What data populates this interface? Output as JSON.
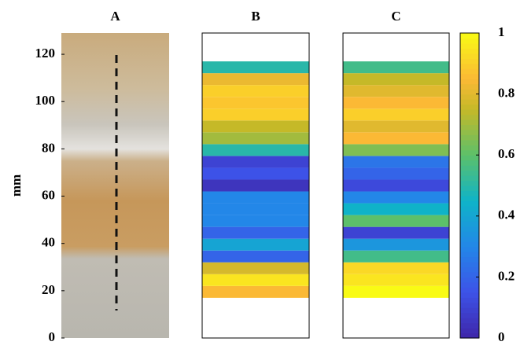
{
  "chart_data": {
    "type": "heatmap",
    "y_label": "mm",
    "ylim": [
      0,
      129
    ],
    "yticks": [
      0,
      20,
      40,
      60,
      80,
      100,
      120
    ],
    "bins": [
      17,
      22,
      27,
      32,
      37,
      42,
      47,
      52,
      57,
      62,
      67,
      72,
      77,
      82,
      87,
      92,
      97,
      102,
      107,
      112,
      117
    ],
    "panels": [
      {
        "title": "A"
      },
      {
        "title": "B",
        "values": [
          0.85,
          0.95,
          0.78,
          0.2,
          0.4,
          0.2,
          0.3,
          0.3,
          0.3,
          0.05,
          0.15,
          0.1,
          0.5,
          0.7,
          0.75,
          0.9,
          0.88,
          0.9,
          0.82,
          0.5
        ]
      },
      {
        "title": "C",
        "values": [
          1.0,
          0.95,
          0.92,
          0.55,
          0.35,
          0.1,
          0.6,
          0.45,
          0.3,
          0.12,
          0.2,
          0.25,
          0.65,
          0.85,
          0.8,
          0.9,
          0.85,
          0.8,
          0.75,
          0.55
        ]
      }
    ],
    "clim": [
      0,
      1
    ],
    "cticks": [
      0,
      0.2,
      0.4,
      0.6,
      0.8,
      1
    ]
  }
}
